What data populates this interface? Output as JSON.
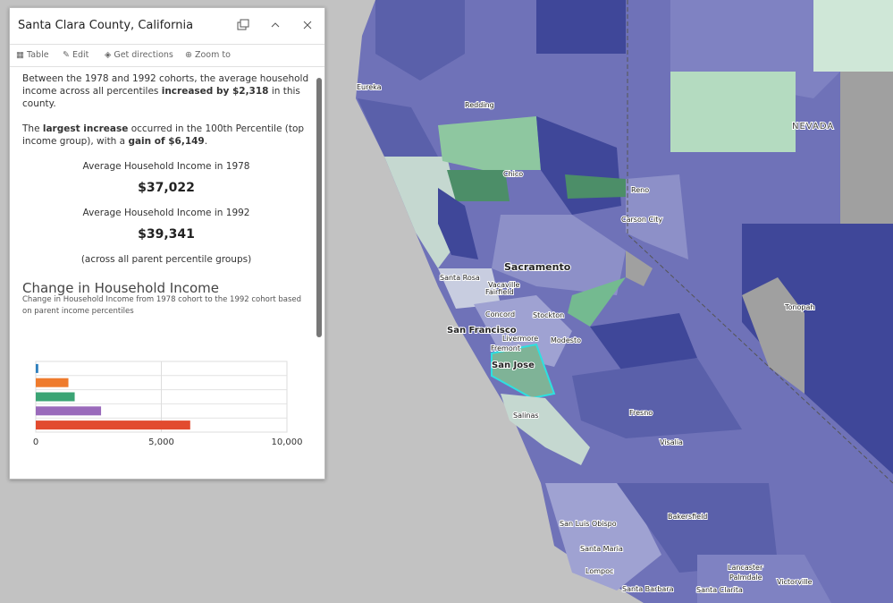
{
  "popup": {
    "title": "Santa Clara County, California",
    "actions": [
      "Table",
      "Edit",
      "Get directions",
      "Zoom to"
    ],
    "summary": [
      "Between the 1978 and 1992 cohorts, the average household income across all percentiles ",
      "increased by $2,318",
      " in this county."
    ],
    "largest": [
      "The ",
      "largest increase",
      " occurred in the 100th Percentile (top income group), with a ",
      "gain of $6,149",
      "."
    ],
    "label_1978": "Average Household Income in 1978",
    "value_1978": "$37,022",
    "label_1992": "Average Household Income in 1992",
    "value_1992": "$39,341",
    "note": "(across all parent percentile groups)",
    "chart_title": "Change in Household Income",
    "chart_subtitle": "Change in Household Income from 1978 cohort to the 1992 cohort based on parent income percentiles"
  },
  "chart_data": {
    "type": "bar",
    "orientation": "horizontal",
    "values": [
      100,
      1300,
      1550,
      2600,
      6149
    ],
    "colors": [
      "#2e7fbd",
      "#ef7b2d",
      "#3ba474",
      "#9a6abb",
      "#e24b2f"
    ],
    "xlim": [
      0,
      10000
    ],
    "xticks": [
      0,
      {
        "value": 5000,
        "label": "5,000"
      },
      {
        "value": 10000,
        "label": "10,000"
      }
    ],
    "grid": true
  },
  "map": {
    "labels": [
      "Eureka",
      "Redding",
      "NEVADA",
      "Chico",
      "Reno",
      "Carson City",
      "Sacramento",
      "Santa Rosa",
      "Vacaville",
      "Fairfield",
      "Concord",
      "Stockton",
      "San Francisco",
      "Livermore",
      "Modesto",
      "Fremont",
      "San Jose",
      "Tonopah",
      "Salinas",
      "Fresno",
      "Visalia",
      "Bakersfield",
      "San Luis Obispo",
      "Santa Maria",
      "Lompoc",
      "Lancaster",
      "Palmdale",
      "Victorville",
      "Santa Barbara",
      "Santa Clarita"
    ]
  }
}
